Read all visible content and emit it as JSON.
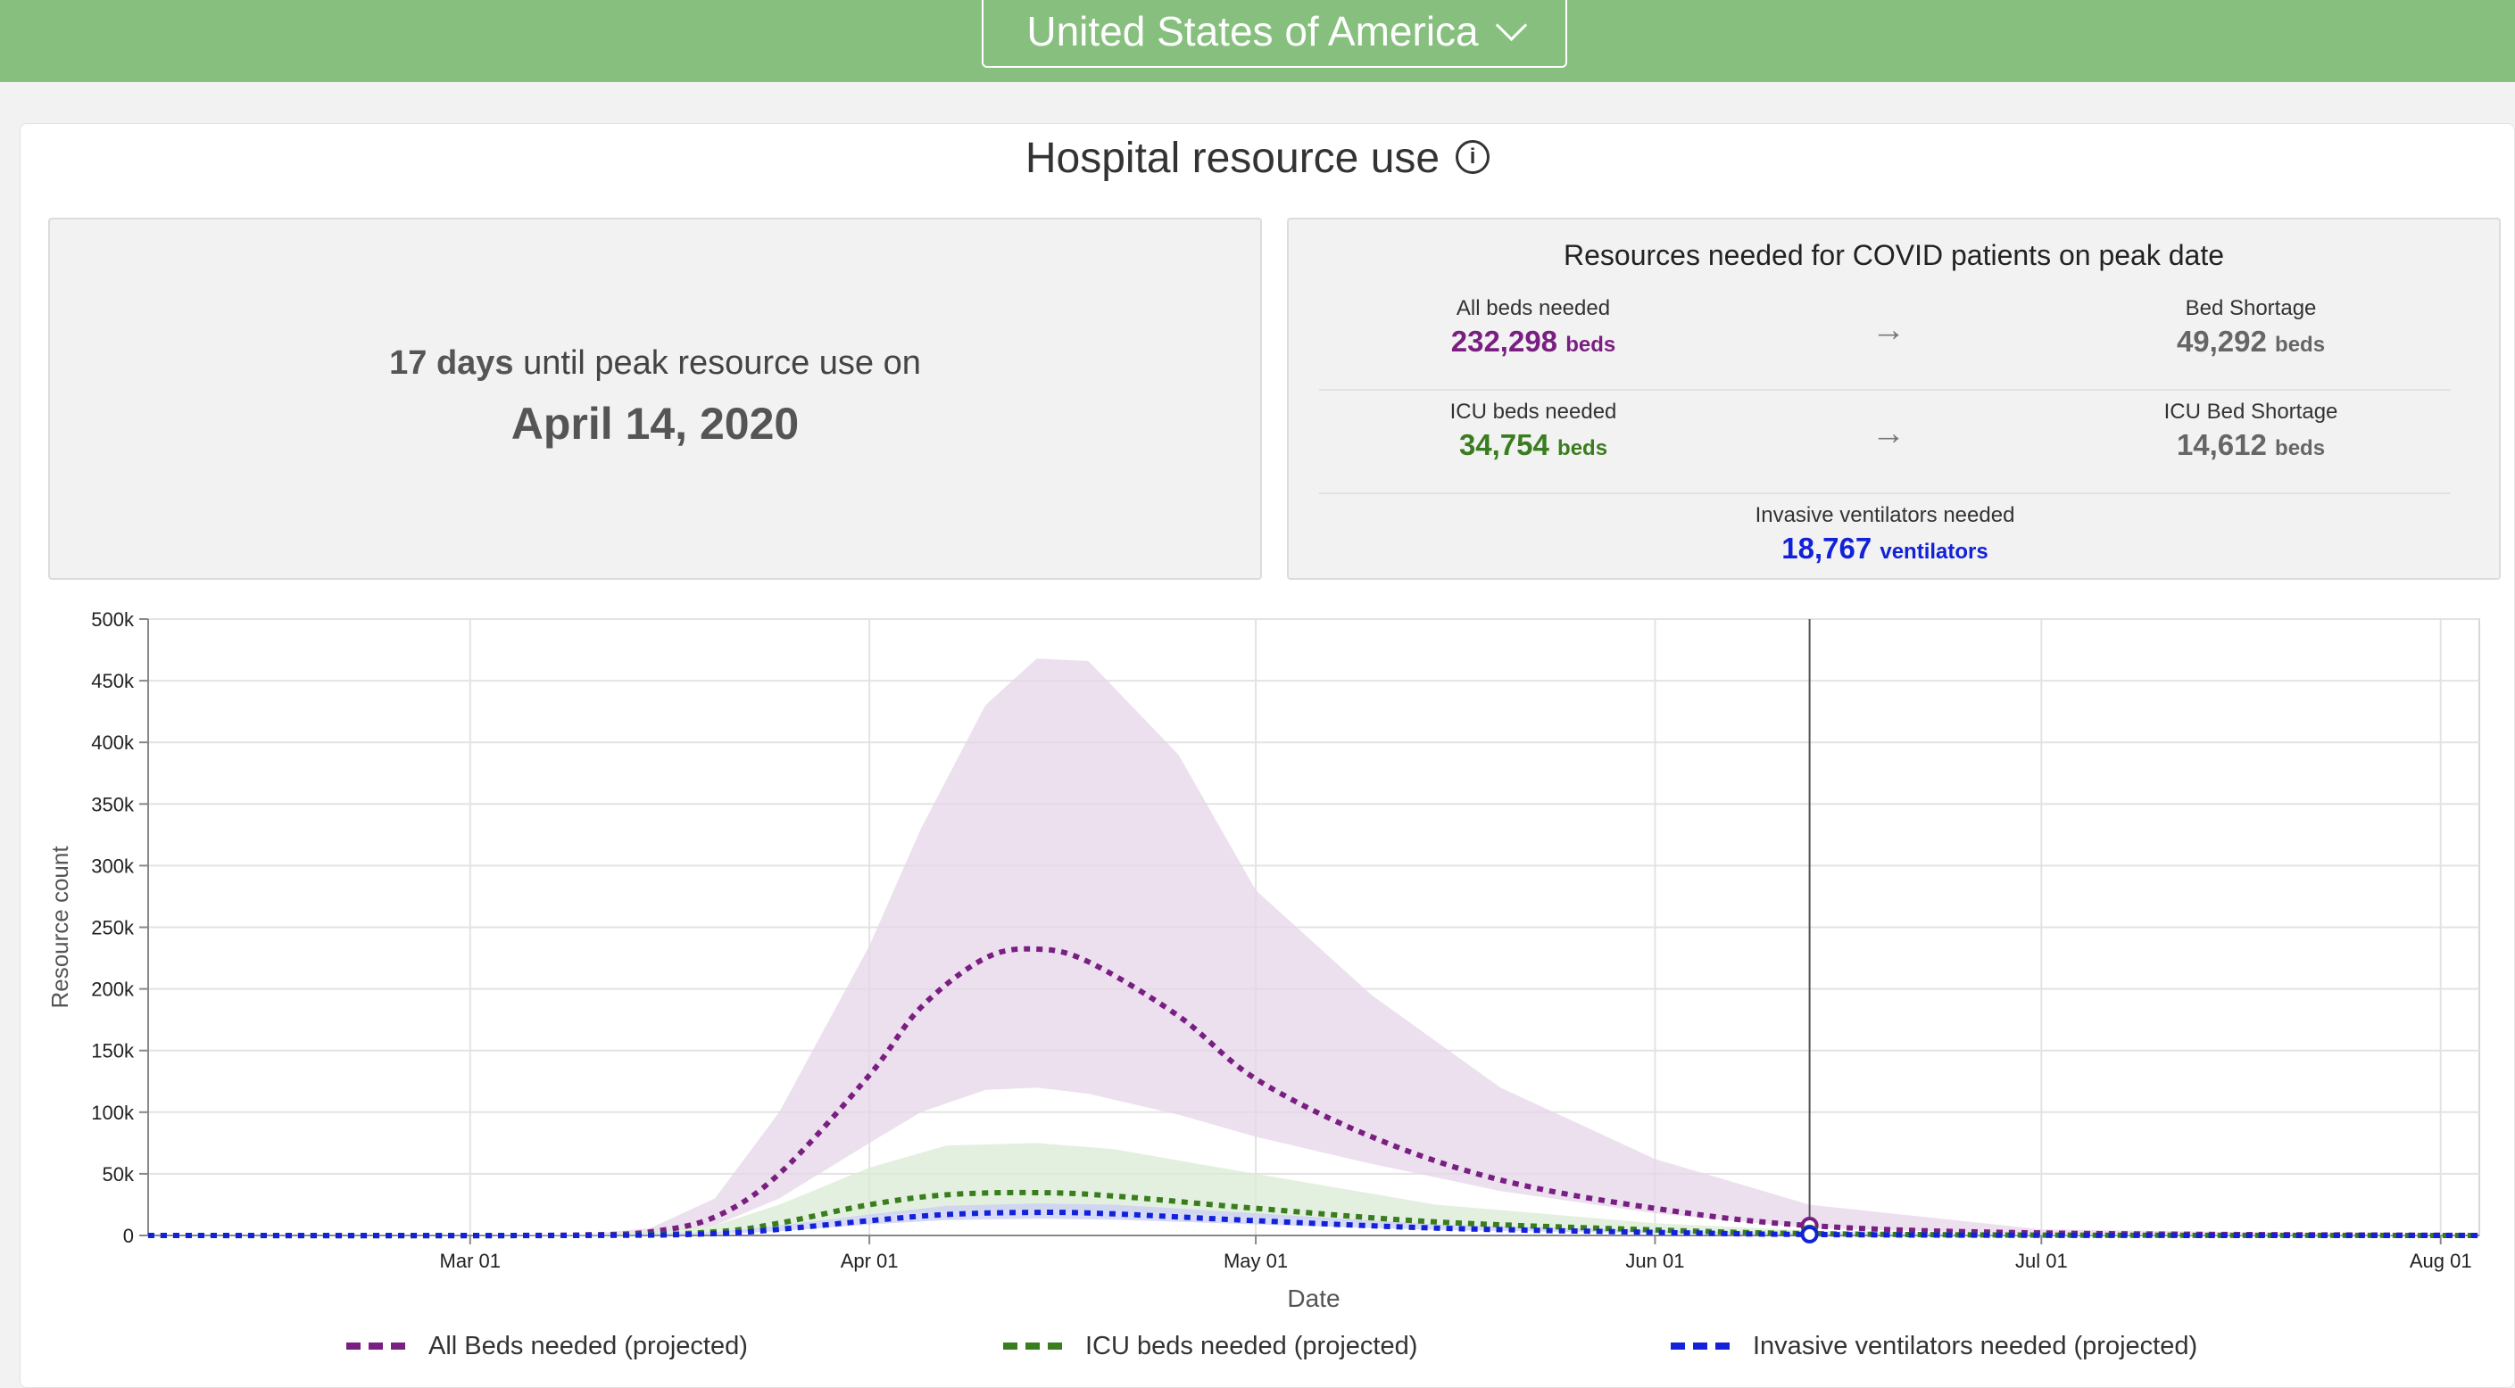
{
  "header": {
    "country": "United States of America"
  },
  "section": {
    "title": "Hospital resource use",
    "info_icon": "i"
  },
  "peak": {
    "days": "17",
    "days_unit": "days",
    "text": "until peak resource use on",
    "date": "April 14, 2020"
  },
  "resources": {
    "title": "Resources needed for COVID patients on peak date",
    "all_beds": {
      "label": "All beds needed",
      "value": "232,298",
      "unit": "beds"
    },
    "bed_shortage": {
      "label": "Bed Shortage",
      "value": "49,292",
      "unit": "beds"
    },
    "icu_beds": {
      "label": "ICU beds needed",
      "value": "34,754",
      "unit": "beds"
    },
    "icu_shortage": {
      "label": "ICU Bed Shortage",
      "value": "14,612",
      "unit": "beds"
    },
    "ventilators": {
      "label": "Invasive ventilators needed",
      "value": "18,767",
      "unit": "ventilators"
    }
  },
  "colors": {
    "all_beds": "#7a1f82",
    "icu": "#3a7d1f",
    "ventilators": "#1222d8",
    "header": "#87c07e"
  },
  "chart_data": {
    "type": "line",
    "xlabel": "Date",
    "ylabel": "Resource count",
    "x_start": "2020-02-05",
    "x_end": "2020-08-04",
    "ylim": [
      0,
      500000
    ],
    "yticks": [
      0,
      50000,
      100000,
      150000,
      200000,
      250000,
      300000,
      350000,
      400000,
      450000,
      500000
    ],
    "ytick_labels": [
      "0",
      "50k",
      "100k",
      "150k",
      "200k",
      "250k",
      "300k",
      "350k",
      "400k",
      "450k",
      "500k"
    ],
    "xticks": [
      {
        "date": "2020-03-01",
        "label": "Mar 01"
      },
      {
        "date": "2020-04-01",
        "label": "Apr 01"
      },
      {
        "date": "2020-05-01",
        "label": "May 01"
      },
      {
        "date": "2020-06-01",
        "label": "Jun 01"
      },
      {
        "date": "2020-07-01",
        "label": "Jul 01"
      },
      {
        "date": "2020-08-01",
        "label": "Aug 01"
      }
    ],
    "marker_date": "2020-06-13",
    "grid": true,
    "legend_position": "bottom",
    "series": [
      {
        "name": "All Beds needed (projected)",
        "color": "#7a1f82",
        "band_color": "#e5d6ea",
        "x": [
          "2020-02-05",
          "2020-03-01",
          "2020-03-10",
          "2020-03-15",
          "2020-03-20",
          "2020-03-25",
          "2020-04-01",
          "2020-04-05",
          "2020-04-10",
          "2020-04-14",
          "2020-04-18",
          "2020-04-25",
          "2020-05-01",
          "2020-05-10",
          "2020-05-20",
          "2020-06-01",
          "2020-06-13",
          "2020-07-01",
          "2020-08-04"
        ],
        "y": [
          0,
          0,
          500,
          3000,
          15000,
          50000,
          130000,
          185000,
          225000,
          232298,
          222000,
          178000,
          127000,
          80000,
          45000,
          22000,
          8000,
          2000,
          0
        ],
        "lower": [
          0,
          0,
          200,
          1500,
          8000,
          30000,
          75000,
          100000,
          118000,
          120000,
          115000,
          98000,
          80000,
          58000,
          36000,
          18000,
          6000,
          1000,
          0
        ],
        "upper": [
          0,
          0,
          1000,
          6000,
          30000,
          100000,
          235000,
          330000,
          430000,
          468000,
          466000,
          390000,
          280000,
          195000,
          120000,
          62000,
          25000,
          5000,
          0
        ]
      },
      {
        "name": "ICU beds needed (projected)",
        "color": "#3a7d1f",
        "band_color": "#d9ebd4",
        "x": [
          "2020-02-05",
          "2020-03-10",
          "2020-03-20",
          "2020-03-25",
          "2020-04-01",
          "2020-04-07",
          "2020-04-14",
          "2020-04-20",
          "2020-05-01",
          "2020-05-15",
          "2020-06-01",
          "2020-06-13",
          "2020-07-01",
          "2020-08-04"
        ],
        "y": [
          0,
          100,
          3000,
          10000,
          25000,
          33000,
          34754,
          32000,
          22000,
          11000,
          4500,
          1500,
          300,
          0
        ],
        "lower": [
          0,
          50,
          2000,
          7000,
          16000,
          20000,
          21000,
          20000,
          15000,
          8000,
          3000,
          1000,
          200,
          0
        ],
        "upper": [
          0,
          200,
          8000,
          25000,
          55000,
          73000,
          75000,
          70000,
          50000,
          25000,
          10000,
          4000,
          800,
          0
        ]
      },
      {
        "name": "Invasive ventilators needed (projected)",
        "color": "#1222d8",
        "band_color": "#c9cdf4",
        "x": [
          "2020-02-05",
          "2020-03-10",
          "2020-03-20",
          "2020-03-25",
          "2020-04-01",
          "2020-04-07",
          "2020-04-14",
          "2020-04-20",
          "2020-05-01",
          "2020-05-15",
          "2020-06-01",
          "2020-06-13",
          "2020-07-01",
          "2020-08-04"
        ],
        "y": [
          0,
          50,
          1500,
          5000,
          12000,
          17000,
          18767,
          17500,
          12000,
          6000,
          2500,
          800,
          150,
          0
        ],
        "lower": [
          0,
          20,
          1000,
          3500,
          9000,
          12500,
          13500,
          12800,
          9000,
          4500,
          1800,
          600,
          100,
          0
        ],
        "upper": [
          0,
          80,
          2500,
          8000,
          17000,
          24000,
          26000,
          25000,
          18000,
          9000,
          4000,
          1500,
          300,
          0
        ]
      }
    ]
  }
}
